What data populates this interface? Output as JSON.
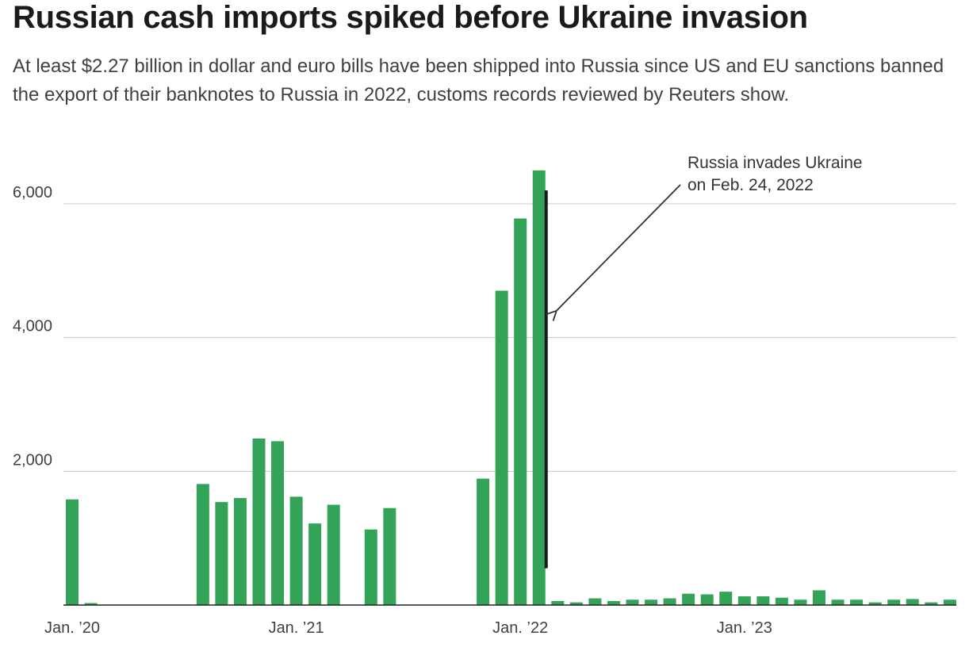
{
  "title": "Russian cash imports spiked before Ukraine invasion",
  "subtitle": "At least $2.27 billion in dollar and euro bills have been shipped into Russia since US and EU sanctions banned the export of their banknotes to Russia in 2022, customs records reviewed by Reuters show.",
  "colors": {
    "bar": "#33a457",
    "grid": "#c8c8c8",
    "axis": "#222222",
    "event_line": "#1a1a1a"
  },
  "chart_data": {
    "type": "bar",
    "title": "Russian cash imports spiked before Ukraine invasion",
    "xlabel": "",
    "ylabel": "",
    "ylim": [
      0,
      6500
    ],
    "y_ticks": [
      2000,
      4000,
      6000
    ],
    "y_tick_labels": [
      "2,000",
      "4,000",
      "6,000"
    ],
    "x_tick_labels": [
      {
        "label": "Jan. ’20",
        "index": 0
      },
      {
        "label": "Jan. ’21",
        "index": 12
      },
      {
        "label": "Jan. ’22",
        "index": 24
      },
      {
        "label": "Jan. ’23",
        "index": 36
      }
    ],
    "grid": true,
    "categories": [
      "2020-01",
      "2020-02",
      "2020-03",
      "2020-04",
      "2020-05",
      "2020-06",
      "2020-07",
      "2020-08",
      "2020-09",
      "2020-10",
      "2020-11",
      "2020-12",
      "2021-01",
      "2021-02",
      "2021-03",
      "2021-04",
      "2021-05",
      "2021-06",
      "2021-07",
      "2021-08",
      "2021-09",
      "2021-10",
      "2021-11",
      "2021-12",
      "2022-01",
      "2022-02",
      "2022-03",
      "2022-04",
      "2022-05",
      "2022-06",
      "2022-07",
      "2022-08",
      "2022-09",
      "2022-10",
      "2022-11",
      "2022-12",
      "2023-01",
      "2023-02",
      "2023-03",
      "2023-04",
      "2023-05",
      "2023-06",
      "2023-07",
      "2023-08",
      "2023-09",
      "2023-10",
      "2023-11",
      "2023-12"
    ],
    "values": [
      1580,
      30,
      0,
      0,
      0,
      0,
      0,
      1810,
      1540,
      1600,
      2490,
      2450,
      1620,
      1220,
      1500,
      0,
      1130,
      1450,
      0,
      0,
      0,
      0,
      1890,
      4700,
      5780,
      6500,
      60,
      40,
      100,
      60,
      80,
      80,
      100,
      170,
      160,
      200,
      130,
      130,
      110,
      80,
      220,
      80,
      80,
      40,
      80,
      90,
      40,
      80
    ],
    "annotation": {
      "text_lines": [
        "Russia invades Ukraine",
        "on Feb. 24, 2022"
      ],
      "date": "2022-02-24",
      "line_top_value": 6200,
      "line_bottom_value": 550,
      "arrow_tip_value": 4400
    }
  }
}
